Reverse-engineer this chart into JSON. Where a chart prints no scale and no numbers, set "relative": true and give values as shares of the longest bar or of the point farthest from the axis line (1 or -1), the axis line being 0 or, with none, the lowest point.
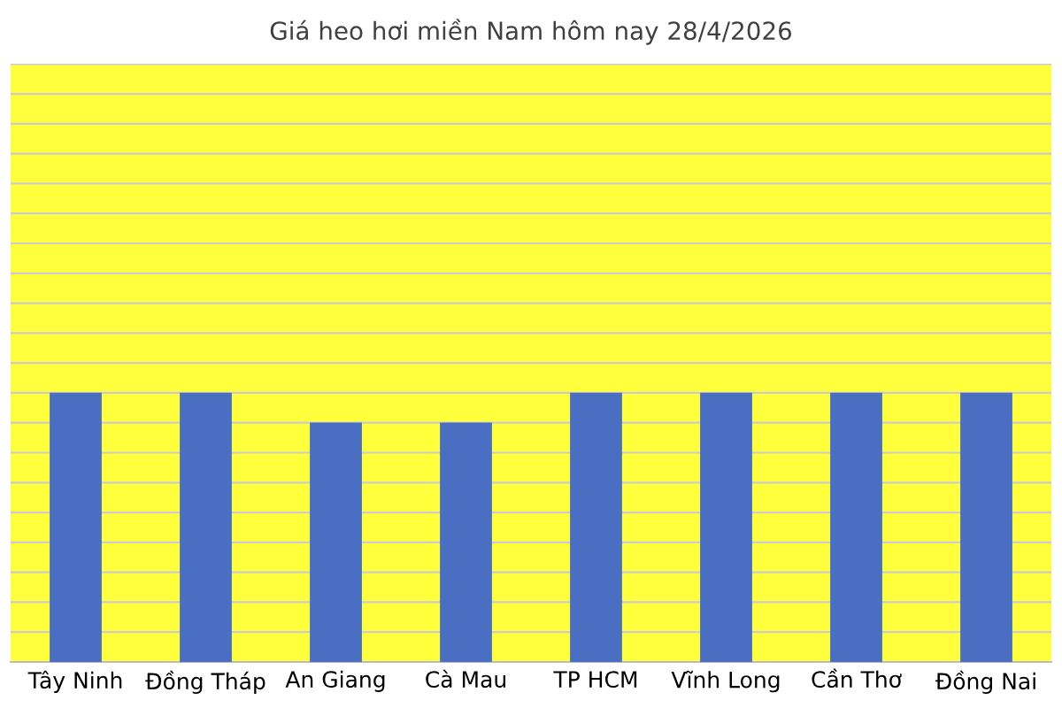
{
  "chart_data": {
    "type": "bar",
    "title": "Giá heo hơi miền Nam hôm nay 28/4/2026",
    "categories": [
      "Tây Ninh",
      "Đồng Tháp",
      "An Giang",
      "Cà Mau",
      "TP HCM",
      "Vĩnh Long",
      "Cần Thơ",
      "Đồng Nai"
    ],
    "values": [
      1,
      1,
      0.889,
      0.889,
      1,
      1,
      1,
      1
    ],
    "color": "#4a6ec2",
    "relative": true,
    "grid": "y"
  }
}
